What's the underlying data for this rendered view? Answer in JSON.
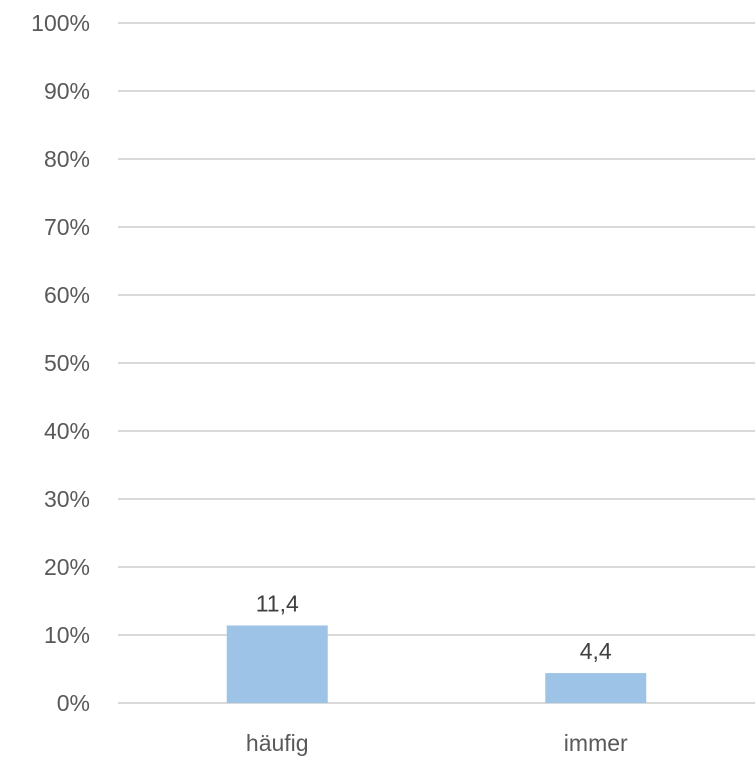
{
  "chart_data": {
    "type": "bar",
    "categories": [
      "häufig",
      "immer"
    ],
    "values": [
      11.4,
      4.4
    ],
    "data_labels": [
      "11,4",
      "4,4"
    ],
    "y_ticks": [
      0,
      10,
      20,
      30,
      40,
      50,
      60,
      70,
      80,
      90,
      100
    ],
    "y_tick_labels": [
      "0%",
      "10%",
      "20%",
      "30%",
      "40%",
      "50%",
      "60%",
      "70%",
      "80%",
      "90%",
      "100%"
    ],
    "ylim": [
      0,
      100
    ],
    "grid": true,
    "legend": "none",
    "colors": {
      "bar": "#9dc3e6",
      "grid": "#d9d9d9",
      "tick_text": "#595959",
      "data_label_text": "#404040"
    }
  }
}
